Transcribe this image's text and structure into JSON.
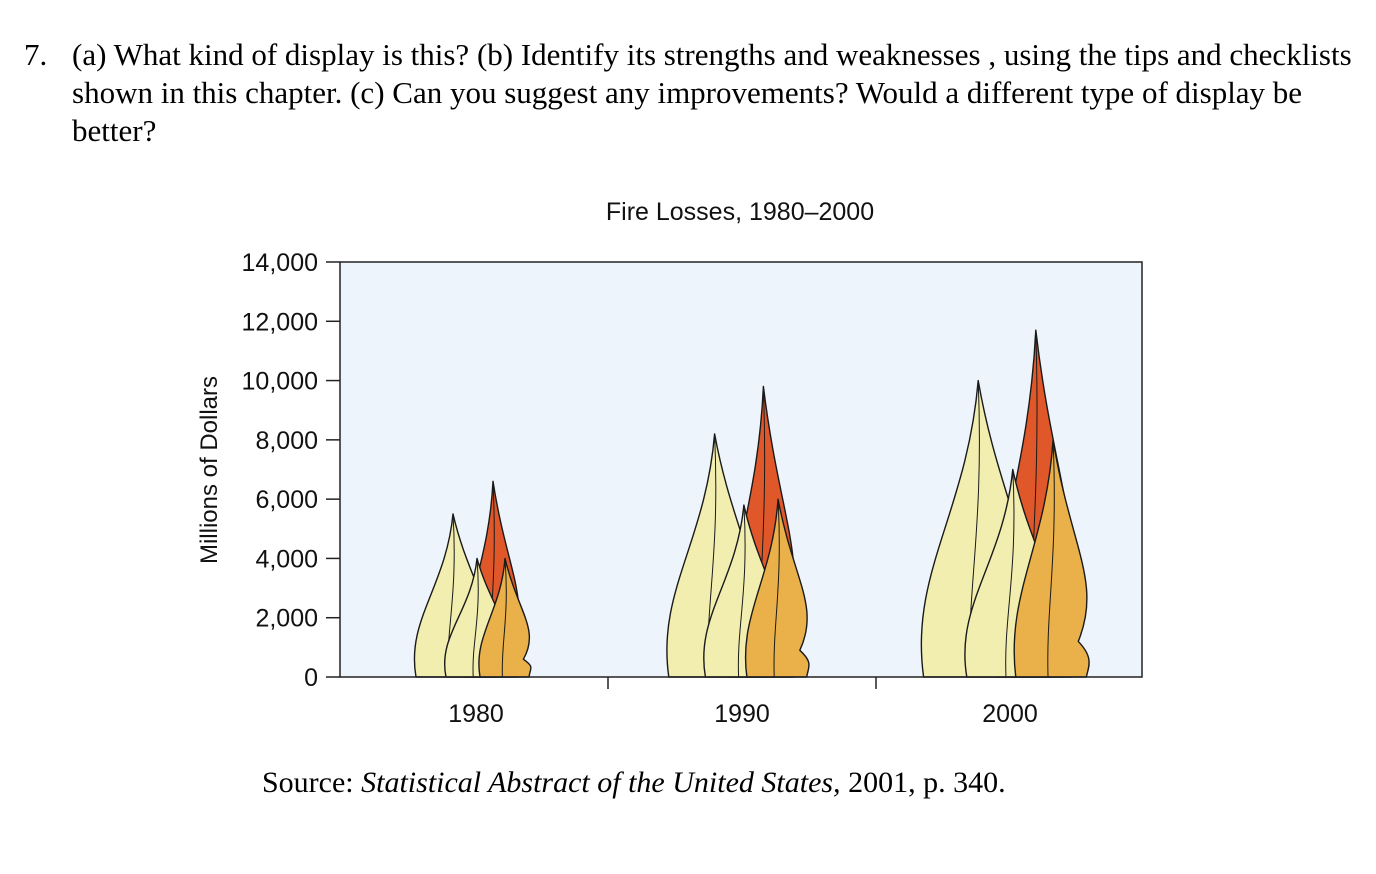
{
  "question": {
    "number": "7.",
    "text": "(a) What kind of display is this? (b) Identify its strengths and weaknesses , using the tips and checklists shown in this chapter. (c) Can you suggest any improvements? Would a different type of display be better?"
  },
  "source": {
    "prefix": "Source: ",
    "title": "Statistical Abstract of the United States,",
    "suffix": " 2001, p. 340."
  },
  "chart_data": {
    "type": "area",
    "title": "Fire Losses, 1980–2000",
    "xlabel": "",
    "ylabel": "Millions of Dollars",
    "ylim": [
      0,
      14000
    ],
    "yticks": [
      0,
      2000,
      4000,
      6000,
      8000,
      10000,
      12000,
      14000
    ],
    "ytick_labels": [
      "0",
      "2,000",
      "4,000",
      "6,000",
      "8,000",
      "10,000",
      "12,000",
      "14,000"
    ],
    "categories": [
      "1980",
      "1990",
      "2000"
    ],
    "series": [
      {
        "name": "Flame 1 (pale yellow)",
        "color": "#f2eeb0",
        "values": [
          5500,
          8200,
          10000
        ]
      },
      {
        "name": "Flame 2 (pale yellow)",
        "color": "#f2eeb0",
        "values": [
          4000,
          5800,
          7000
        ]
      },
      {
        "name": "Flame 3 (orange-red)",
        "color": "#e0582a",
        "values": [
          6600,
          9800,
          11700
        ]
      },
      {
        "name": "Flame 4 (orange)",
        "color": "#eab04a",
        "values": [
          4000,
          6000,
          8000
        ]
      }
    ],
    "grid": false,
    "colors": {
      "background": "#edf4fb",
      "outline": "#1a1a1a"
    }
  }
}
